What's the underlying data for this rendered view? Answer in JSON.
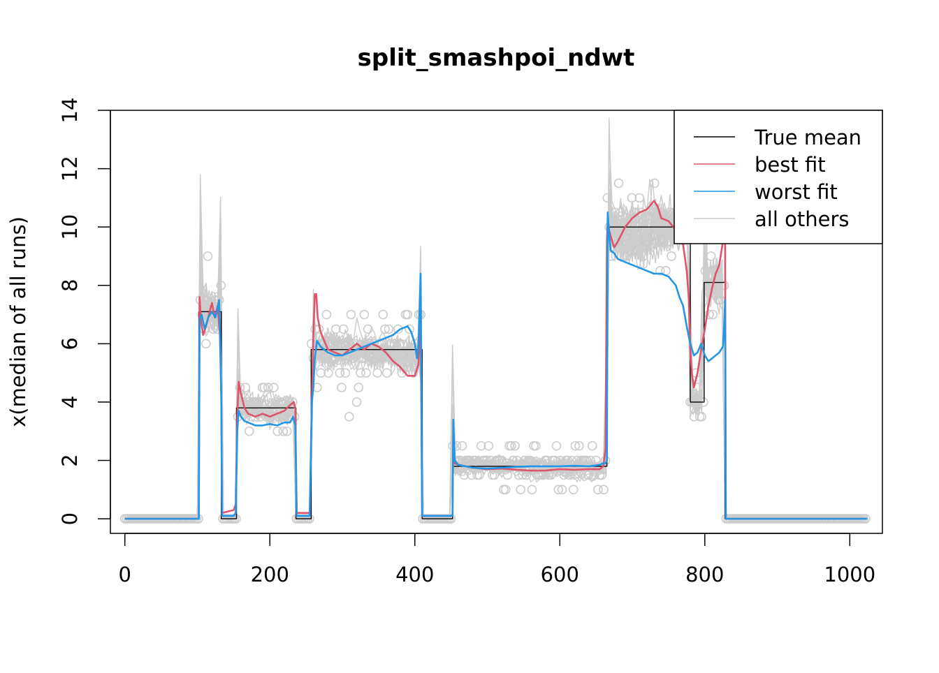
{
  "chart_data": {
    "type": "line",
    "title": "split_smashpoi_ndwt",
    "xlabel": "",
    "ylabel": "x(median of all runs)",
    "xlim": [
      -20,
      1045
    ],
    "ylim": [
      -0.5,
      14
    ],
    "xticks": [
      0,
      200,
      400,
      600,
      800,
      1000
    ],
    "yticks": [
      0,
      2,
      4,
      6,
      8,
      10,
      12,
      14
    ],
    "xtick_labels": [
      "0",
      "200",
      "400",
      "600",
      "800",
      "1000"
    ],
    "ytick_labels": [
      "0",
      "2",
      "4",
      "6",
      "8",
      "10",
      "12",
      "14"
    ],
    "legend": {
      "position": "top-right",
      "entries": [
        {
          "label": "True mean",
          "color": "#000000"
        },
        {
          "label": "best fit",
          "color": "#DF536B"
        },
        {
          "label": "worst fit",
          "color": "#2297E6"
        },
        {
          "label": "all others",
          "color": "#CCCCCC"
        }
      ]
    },
    "segments": [
      {
        "x0": 0,
        "x1": 102,
        "mean": 0
      },
      {
        "x0": 102,
        "x1": 133,
        "mean": 7.1
      },
      {
        "x0": 133,
        "x1": 154,
        "mean": 0
      },
      {
        "x0": 154,
        "x1": 236,
        "mean": 3.8
      },
      {
        "x0": 236,
        "x1": 257,
        "mean": 0
      },
      {
        "x0": 257,
        "x1": 410,
        "mean": 5.8
      },
      {
        "x0": 410,
        "x1": 452,
        "mean": 0
      },
      {
        "x0": 452,
        "x1": 665,
        "mean": 1.8
      },
      {
        "x0": 665,
        "x1": 780,
        "mean": 10
      },
      {
        "x0": 780,
        "x1": 799,
        "mean": 4
      },
      {
        "x0": 799,
        "x1": 828,
        "mean": 8.1
      },
      {
        "x0": 828,
        "x1": 1024,
        "mean": 0
      }
    ],
    "series": [
      {
        "name": "True mean",
        "color": "#000000",
        "x": [
          0,
          102,
          102,
          133,
          133,
          154,
          154,
          236,
          236,
          257,
          257,
          410,
          410,
          452,
          452,
          665,
          665,
          780,
          780,
          799,
          799,
          828,
          828,
          1024
        ],
        "y": [
          0,
          0,
          7.1,
          7.1,
          0,
          0,
          3.8,
          3.8,
          0,
          0,
          5.8,
          5.8,
          0,
          0,
          1.8,
          1.8,
          10,
          10,
          4,
          4,
          8.1,
          8.1,
          0,
          0
        ]
      },
      {
        "name": "best fit",
        "color": "#DF536B",
        "x": [
          0,
          102,
          103,
          105,
          108,
          112,
          116,
          120,
          124,
          128,
          131,
          133,
          134,
          150,
          153,
          155,
          157,
          160,
          165,
          170,
          180,
          190,
          200,
          210,
          220,
          228,
          233,
          235,
          237,
          255,
          258,
          260,
          262,
          264,
          266,
          270,
          275,
          280,
          290,
          300,
          310,
          320,
          330,
          340,
          350,
          360,
          370,
          380,
          390,
          400,
          405,
          408,
          410,
          411,
          450,
          452,
          453,
          455,
          460,
          480,
          500,
          520,
          540,
          560,
          580,
          600,
          620,
          640,
          655,
          660,
          663,
          665,
          666,
          668,
          670,
          675,
          680,
          690,
          700,
          710,
          720,
          730,
          735,
          740,
          750,
          760,
          770,
          775,
          778,
          780,
          782,
          785,
          790,
          795,
          800,
          805,
          810,
          815,
          820,
          825,
          828,
          829,
          1024
        ],
        "y": [
          0,
          0,
          7.6,
          6.8,
          6.3,
          6.6,
          7.0,
          7.4,
          6.9,
          7.3,
          6.3,
          4.2,
          0.2,
          0.3,
          0.5,
          3.5,
          4.7,
          4.3,
          3.8,
          3.6,
          3.5,
          3.6,
          3.5,
          3.6,
          3.7,
          3.9,
          4.0,
          3.8,
          0.2,
          0.2,
          4.1,
          6.3,
          7.7,
          7.7,
          6.9,
          6.4,
          6.1,
          5.8,
          5.7,
          5.6,
          5.8,
          6.0,
          5.8,
          6.0,
          5.9,
          5.7,
          5.4,
          5.2,
          4.9,
          4.9,
          5.3,
          7.0,
          0.1,
          0.1,
          0.1,
          0.1,
          3.0,
          1.9,
          1.85,
          1.75,
          1.7,
          1.72,
          1.68,
          1.65,
          1.65,
          1.7,
          1.68,
          1.7,
          1.7,
          1.8,
          2.4,
          9.5,
          10.3,
          9.9,
          9.7,
          9.3,
          9.5,
          10.0,
          10.3,
          10.5,
          10.6,
          10.9,
          10.7,
          10.3,
          10.2,
          9.9,
          9.4,
          8.5,
          7.5,
          5.8,
          5.0,
          4.5,
          5.0,
          5.8,
          6.5,
          7.3,
          7.9,
          8.4,
          8.7,
          9.5,
          10.0,
          0,
          0
        ]
      },
      {
        "name": "worst fit",
        "color": "#2297E6",
        "x": [
          0,
          102,
          103,
          106,
          110,
          115,
          120,
          125,
          130,
          132,
          133,
          134,
          150,
          153,
          155,
          157,
          160,
          165,
          170,
          180,
          190,
          200,
          210,
          220,
          228,
          232,
          235,
          237,
          255,
          258,
          260,
          262,
          265,
          270,
          280,
          290,
          300,
          310,
          320,
          330,
          340,
          350,
          360,
          370,
          380,
          390,
          395,
          400,
          403,
          405,
          407,
          408,
          410,
          411,
          450,
          452,
          453,
          455,
          460,
          480,
          500,
          520,
          540,
          560,
          580,
          600,
          620,
          640,
          655,
          660,
          663,
          665,
          666,
          668,
          670,
          675,
          680,
          690,
          700,
          710,
          720,
          730,
          740,
          750,
          760,
          765,
          770,
          775,
          780,
          785,
          790,
          795,
          800,
          805,
          810,
          815,
          820,
          825,
          827,
          828,
          829,
          1024
        ],
        "y": [
          0,
          0,
          6.8,
          7.0,
          6.5,
          6.9,
          7.1,
          6.9,
          7.5,
          5.6,
          4.2,
          0.1,
          0.1,
          0.2,
          3.0,
          3.7,
          3.5,
          3.35,
          3.3,
          3.2,
          3.2,
          3.25,
          3.2,
          3.3,
          3.3,
          3.5,
          3.2,
          0.1,
          0.1,
          4.0,
          4.5,
          5.5,
          6.1,
          5.9,
          5.7,
          5.6,
          5.6,
          5.7,
          5.8,
          5.9,
          6.0,
          6.1,
          6.2,
          6.3,
          6.5,
          6.6,
          6.4,
          6.0,
          5.5,
          6.0,
          7.5,
          8.4,
          0.1,
          0.1,
          0.1,
          0.1,
          3.4,
          2.0,
          1.85,
          1.75,
          1.72,
          1.75,
          1.78,
          1.8,
          1.8,
          1.8,
          1.82,
          1.8,
          1.85,
          1.9,
          1.9,
          2.0,
          10.5,
          9.8,
          9.2,
          9.1,
          8.9,
          8.8,
          8.7,
          8.6,
          8.5,
          8.4,
          8.4,
          8.3,
          8.0,
          7.6,
          7.3,
          6.6,
          6.0,
          5.6,
          5.7,
          6.0,
          5.6,
          5.4,
          5.5,
          5.6,
          5.7,
          5.9,
          6.8,
          7.5,
          0,
          0
        ]
      }
    ],
    "others_style": {
      "name": "all others",
      "color": "#CCCCCC",
      "marker": "open-circle"
    }
  }
}
